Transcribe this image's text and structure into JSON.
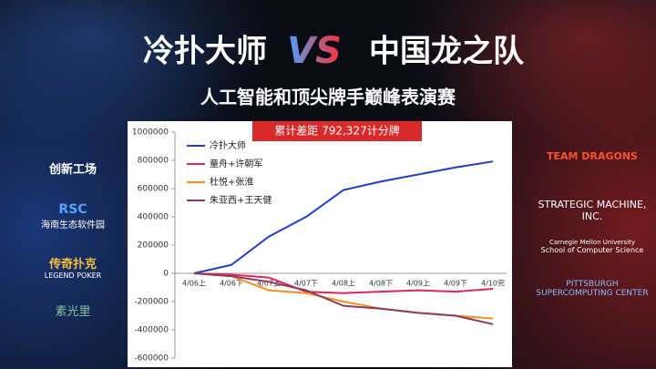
{
  "header": {
    "title_left": "冷扑大师",
    "vs": "VS",
    "title_right": "中国龙之队",
    "subtitle": "人工智能和顶尖牌手巅峰表演赛"
  },
  "chart_data": {
    "type": "line",
    "annotation": "累计差距 792,327计分牌",
    "categories": [
      "4/06上",
      "4/06下",
      "4/07上",
      "4/07下",
      "4/08上",
      "4/08下",
      "4/09上",
      "4/09下",
      "4/10完"
    ],
    "series": [
      {
        "name": "冷扑大师",
        "color": "#1f3fc0",
        "values": [
          0,
          60000,
          260000,
          400000,
          590000,
          650000,
          700000,
          750000,
          792327
        ]
      },
      {
        "name": "童舟+许朝军",
        "color": "#e0245e",
        "values": [
          0,
          -10000,
          -30000,
          -130000,
          -140000,
          -130000,
          -120000,
          -130000,
          -110000
        ]
      },
      {
        "name": "杜悦+张淮",
        "color": "#f39020",
        "values": [
          0,
          -20000,
          -120000,
          -140000,
          -200000,
          -250000,
          -280000,
          -300000,
          -320000
        ]
      },
      {
        "name": "朱亚西+王天健",
        "color": "#8b3a62",
        "values": [
          0,
          -20000,
          -60000,
          -120000,
          -230000,
          -250000,
          -280000,
          -300000,
          -360000
        ]
      }
    ],
    "ylim": [
      -600000,
      1000000
    ],
    "yticks": [
      -600000,
      -400000,
      -200000,
      0,
      200000,
      400000,
      600000,
      800000,
      1000000
    ]
  },
  "sponsors_left": [
    "创新工场",
    "RSC",
    "海南生态软件园",
    "传奇扑克",
    "LEGEND POKER",
    "素光里"
  ],
  "sponsors_right": [
    "TEAM DRAGONS",
    "STRATEGIC MACHINE, INC.",
    "Carnegie Mellon University",
    "School of Computer Science",
    "PITTSBURGH SUPERCOMPUTING CENTER"
  ]
}
